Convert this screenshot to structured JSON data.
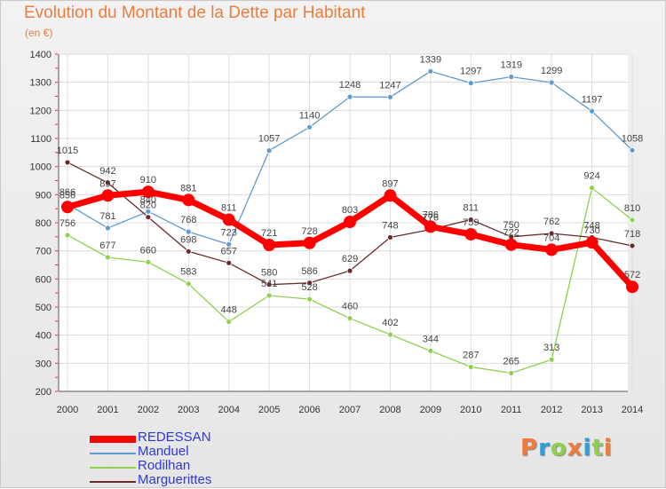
{
  "header": {
    "title": "Evolution du Montant de la Dette par Habitant",
    "unit": "(en €)"
  },
  "colors": {
    "title": "#ee7c3c",
    "legend_text": "#2e37d6",
    "grid": "#dcdcdc",
    "axis": "#555555"
  },
  "chart_data": {
    "type": "line",
    "title": "Evolution du Montant de la Dette par Habitant",
    "ylabel": "(en €)",
    "xlabel": "",
    "x": [
      "2000",
      "2001",
      "2002",
      "2003",
      "2004",
      "2005",
      "2006",
      "2007",
      "2008",
      "2009",
      "2010",
      "2011",
      "2012",
      "2013",
      "2014"
    ],
    "ylim": [
      200,
      1400
    ],
    "yticks": [
      200,
      300,
      400,
      500,
      600,
      700,
      800,
      900,
      1000,
      1100,
      1200,
      1300,
      1400
    ],
    "grid": true,
    "legend": "bottom-left",
    "series": [
      {
        "name": "Manduel",
        "color": "#5f9bd1",
        "values": [
          866,
          781,
          840,
          768,
          723,
          1057,
          1140,
          1248,
          1247,
          1339,
          1297,
          1319,
          1299,
          1197,
          1058
        ]
      },
      {
        "name": "Rodilhan",
        "color": "#8fd04f",
        "values": [
          756,
          677,
          660,
          583,
          448,
          541,
          528,
          460,
          402,
          344,
          287,
          265,
          313,
          924,
          810
        ]
      },
      {
        "name": "Marguerittes",
        "color": "#6b2a2a",
        "values": [
          1015,
          942,
          820,
          698,
          657,
          580,
          586,
          629,
          748,
          776,
          811,
          750,
          762,
          748,
          718
        ]
      },
      {
        "name": "REDESSAN",
        "color": "#ff0000",
        "values": [
          856,
          897,
          910,
          881,
          811,
          721,
          728,
          803,
          897,
          786,
          759,
          722,
          704,
          730,
          572
        ]
      }
    ]
  },
  "legend": {
    "items": [
      {
        "name": "REDESSAN",
        "color": "#ff0000"
      },
      {
        "name": "Manduel",
        "color": "#5f9bd1"
      },
      {
        "name": "Rodilhan",
        "color": "#8fd04f"
      },
      {
        "name": "Marguerittes",
        "color": "#6b2a2a"
      }
    ]
  },
  "logo": {
    "text": "Proxiti",
    "colors": [
      "#ee7c3c",
      "#2e9fd6",
      "#8fd04f",
      "#ee7c3c",
      "#2e9fd6",
      "#8fd04f",
      "#ee7c3c"
    ]
  }
}
